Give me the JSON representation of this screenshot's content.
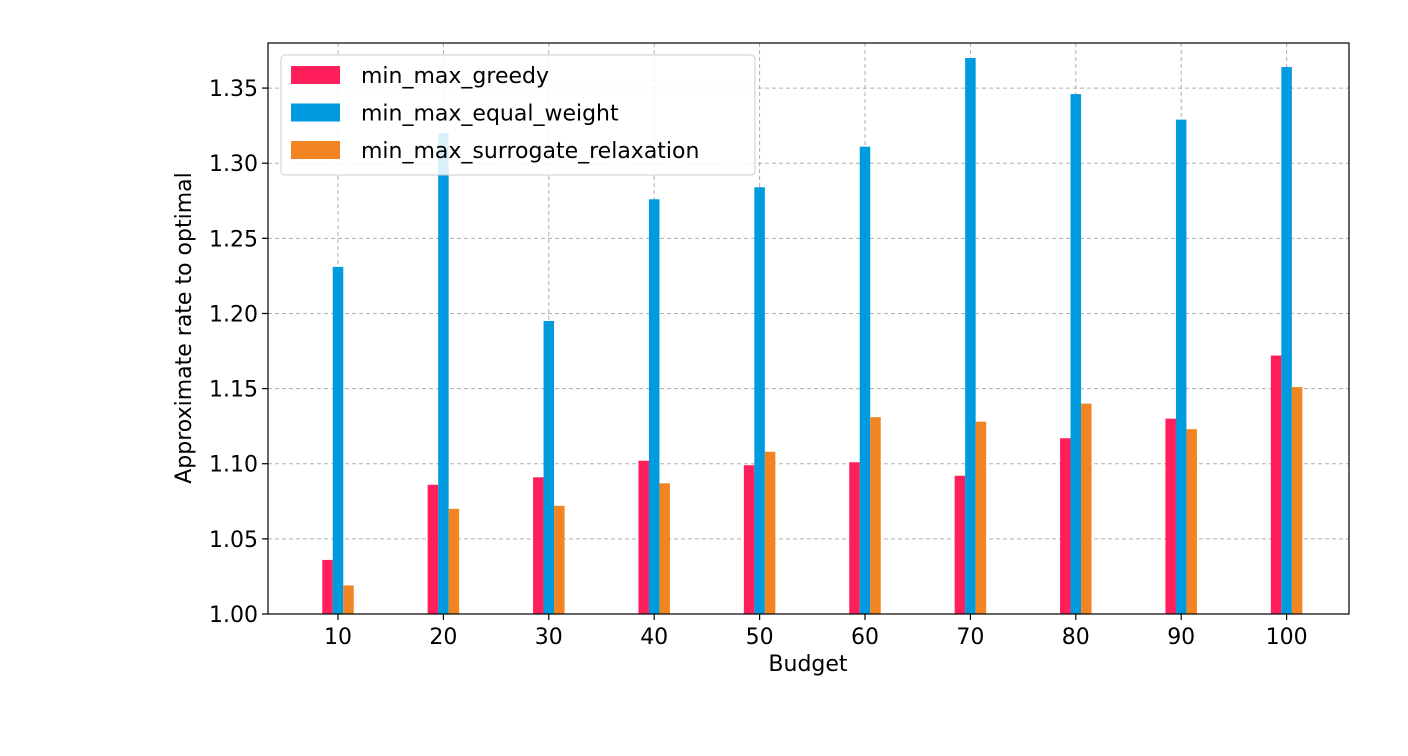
{
  "chart_data": {
    "type": "bar",
    "title": "",
    "xlabel": "Budget",
    "ylabel": "Approximate rate to optimal",
    "categories": [
      "10",
      "20",
      "30",
      "40",
      "50",
      "60",
      "70",
      "80",
      "90",
      "100"
    ],
    "ylim": [
      1.0,
      1.38
    ],
    "yticks": [
      "1.00",
      "1.05",
      "1.10",
      "1.15",
      "1.20",
      "1.25",
      "1.30",
      "1.35"
    ],
    "grid": true,
    "legend_position": "top-left",
    "series": [
      {
        "name": "min_max_greedy",
        "color": "#FF1F5B",
        "values": [
          1.036,
          1.086,
          1.091,
          1.102,
          1.099,
          1.101,
          1.092,
          1.117,
          1.13,
          1.172
        ]
      },
      {
        "name": "min_max_equal_weight",
        "color": "#009ADE",
        "values": [
          1.231,
          1.32,
          1.195,
          1.276,
          1.284,
          1.311,
          1.37,
          1.346,
          1.329,
          1.364
        ]
      },
      {
        "name": "min_max_surrogate_relaxation",
        "color": "#F28522",
        "values": [
          1.019,
          1.07,
          1.072,
          1.087,
          1.108,
          1.131,
          1.128,
          1.14,
          1.123,
          1.151
        ]
      }
    ]
  }
}
